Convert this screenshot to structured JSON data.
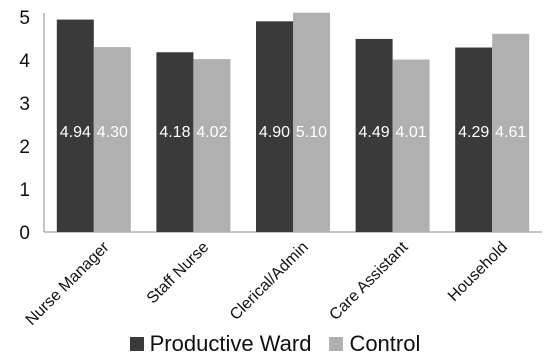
{
  "chart_data": {
    "type": "bar",
    "title": "",
    "xlabel": "",
    "ylabel": "",
    "categories": [
      "Nurse Manager",
      "Staff Nurse",
      "Clerical/Admin",
      "Care Assistant",
      "Household"
    ],
    "series": [
      {
        "name": "Productive Ward",
        "values": [
          4.94,
          4.18,
          4.9,
          4.49,
          4.29
        ],
        "labels": [
          "4.94",
          "4.18",
          "4.90",
          "4.49",
          "4.29"
        ],
        "color": "#3a3a3a"
      },
      {
        "name": "Control",
        "values": [
          4.3,
          4.02,
          5.1,
          4.01,
          4.61
        ],
        "labels": [
          "4.30",
          "4.02",
          "5.10",
          "4.01",
          "4.61"
        ],
        "color": "#b0b0b0"
      }
    ],
    "ylim": [
      0,
      5
    ],
    "yticks": [
      0,
      1,
      2,
      3,
      4,
      5
    ],
    "ytick_labels": [
      "0",
      "1",
      "2",
      "3",
      "4",
      "5"
    ],
    "grid": false,
    "legend_position": "bottom"
  }
}
